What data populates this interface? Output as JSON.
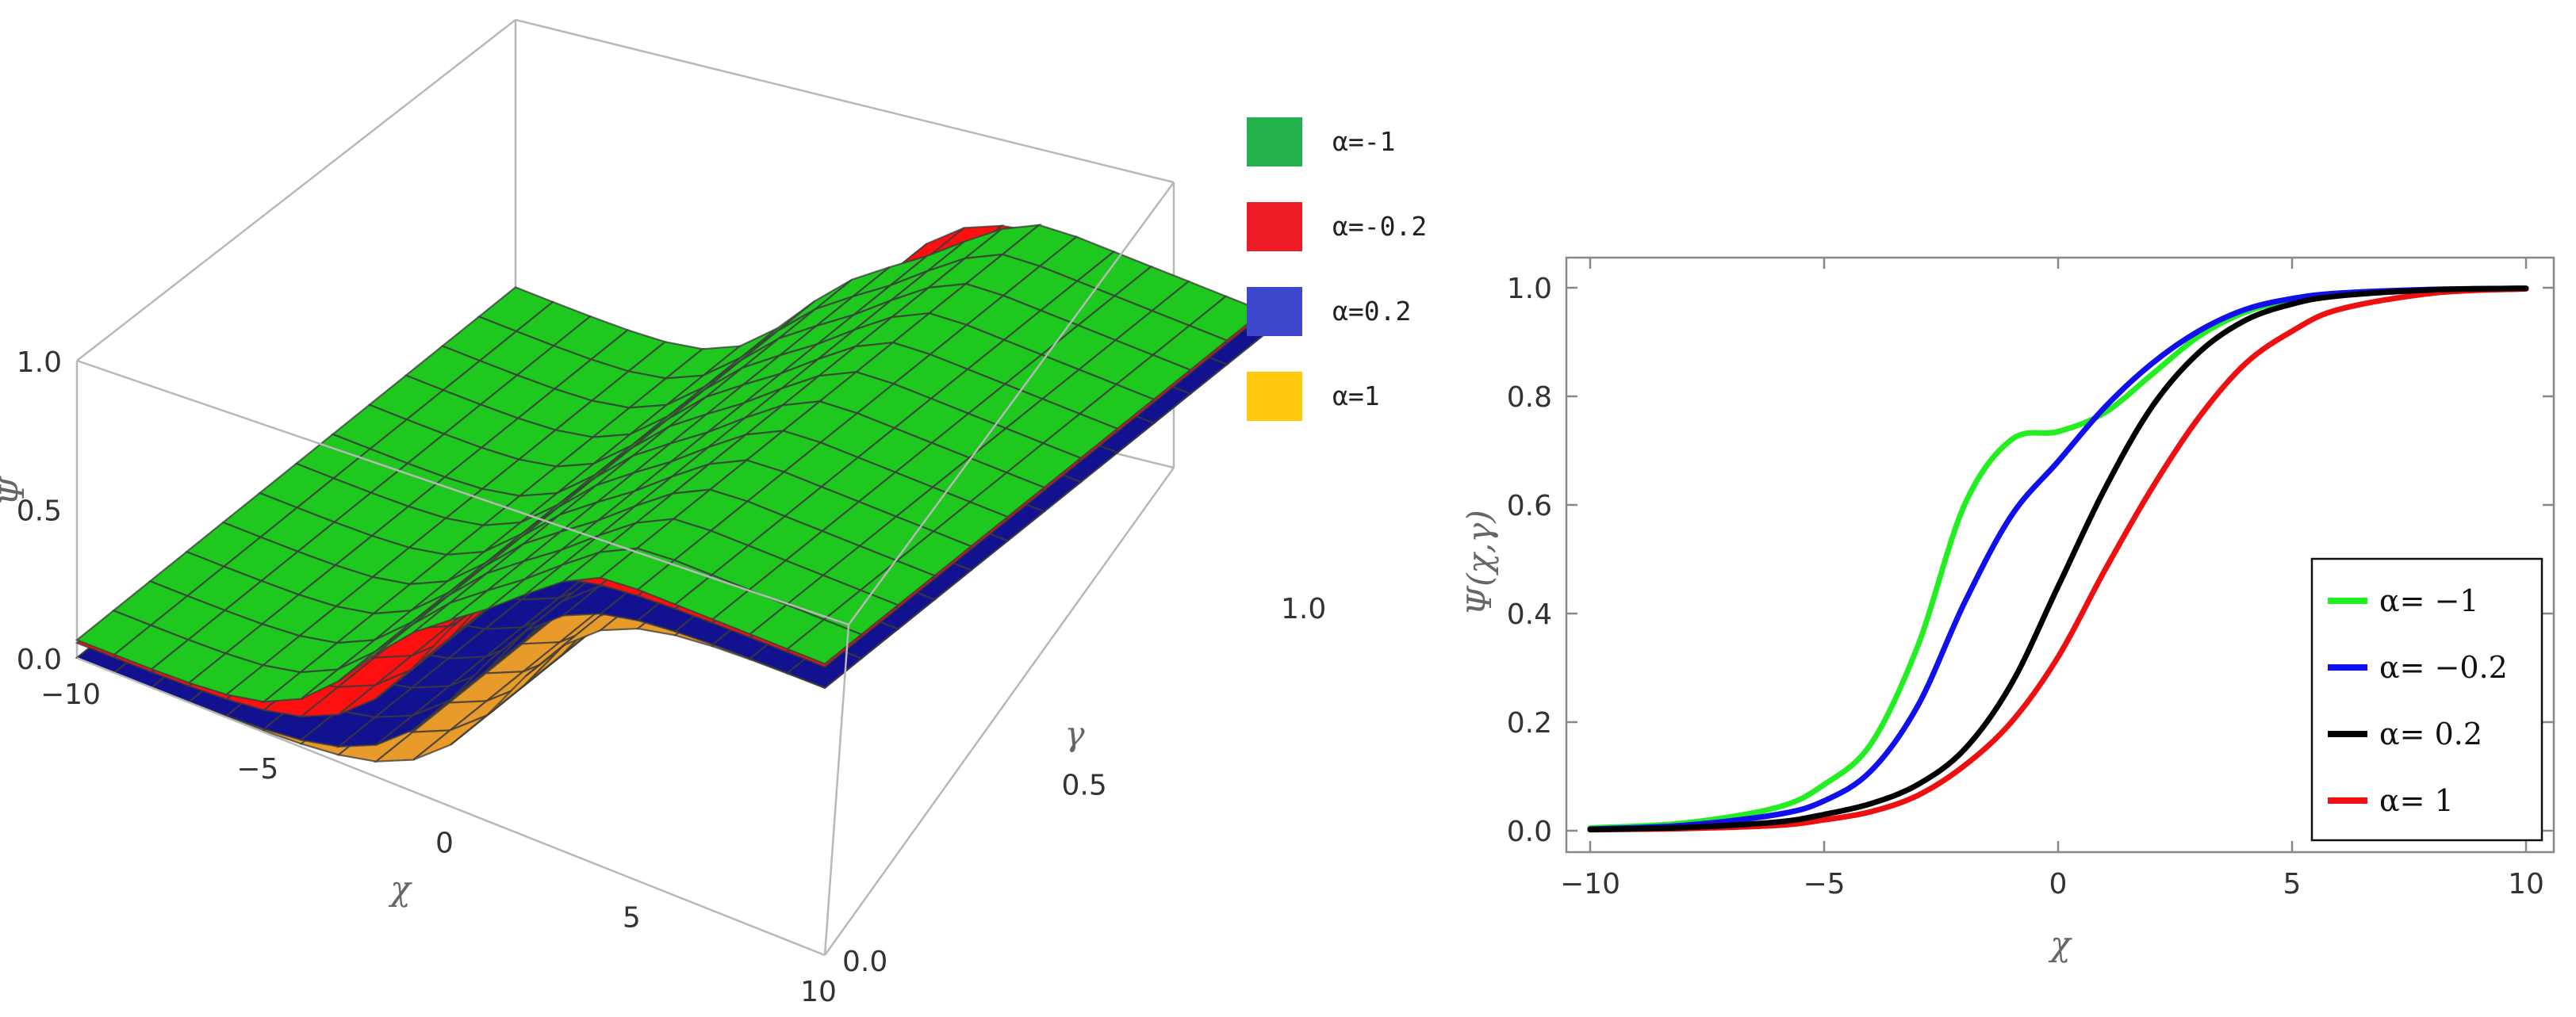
{
  "chart_data": [
    {
      "type": "surface3d",
      "zlabel": "Ψ",
      "xlabel": "χ",
      "ylabel": "γ",
      "xlim": [
        -10,
        10
      ],
      "ylim": [
        0,
        1
      ],
      "zlim": [
        0,
        1
      ],
      "x_ticks": [
        "−10",
        "−5",
        "0",
        "5",
        "10"
      ],
      "y_ticks": [
        "0.0",
        "0.5",
        "1.0"
      ],
      "z_ticks": [
        "0.0",
        "0.5",
        "1.0"
      ],
      "legend": {
        "placement": "top-right",
        "items": [
          {
            "label": "α=-1",
            "color": "#22b14c"
          },
          {
            "label": "α=-0.2",
            "color": "#ed1c24"
          },
          {
            "label": "α=0.2",
            "color": "#3f48cc"
          },
          {
            "label": "α=1",
            "color": "#ffc90e"
          }
        ]
      },
      "surface_colors": {
        "alpha_m1": "#1ec81e",
        "alpha_m02": "#ff1010",
        "alpha_02": "#121290",
        "alpha_1": "#e89a2a"
      }
    },
    {
      "type": "line",
      "xlabel": "χ",
      "ylabel": "Ψ(χ,γ)",
      "xlim": [
        -10,
        10
      ],
      "ylim": [
        0,
        1
      ],
      "x_ticks": [
        "−10",
        "−5",
        "0",
        "5",
        "10"
      ],
      "y_ticks": [
        "0.0",
        "0.2",
        "0.4",
        "0.6",
        "0.8",
        "1.0"
      ],
      "legend": {
        "placement": "bottom-right"
      },
      "x": [
        -10,
        -8,
        -6,
        -5,
        -4,
        -3,
        -2,
        -1,
        0,
        1,
        2,
        3,
        4,
        5,
        6,
        8,
        10
      ],
      "series": [
        {
          "name": "α= −1",
          "color": "#22ee22",
          "values": [
            0.005,
            0.014,
            0.043,
            0.085,
            0.16,
            0.34,
            0.6,
            0.72,
            0.735,
            0.77,
            0.84,
            0.91,
            0.955,
            0.978,
            0.99,
            0.997,
            0.999
          ]
        },
        {
          "name": "α= −0.2",
          "color": "#1010ee",
          "values": [
            0.003,
            0.01,
            0.03,
            0.055,
            0.11,
            0.23,
            0.42,
            0.58,
            0.68,
            0.78,
            0.86,
            0.92,
            0.96,
            0.98,
            0.99,
            0.997,
            0.999
          ]
        },
        {
          "name": "α= 0.2",
          "color": "#000000",
          "values": [
            0.002,
            0.006,
            0.016,
            0.03,
            0.05,
            0.085,
            0.15,
            0.27,
            0.45,
            0.63,
            0.78,
            0.88,
            0.94,
            0.97,
            0.985,
            0.996,
            0.999
          ]
        },
        {
          "name": "α= 1",
          "color": "#ee1010",
          "values": [
            0.002,
            0.004,
            0.01,
            0.02,
            0.035,
            0.065,
            0.12,
            0.2,
            0.32,
            0.48,
            0.63,
            0.76,
            0.86,
            0.92,
            0.96,
            0.99,
            0.998
          ]
        }
      ]
    }
  ]
}
